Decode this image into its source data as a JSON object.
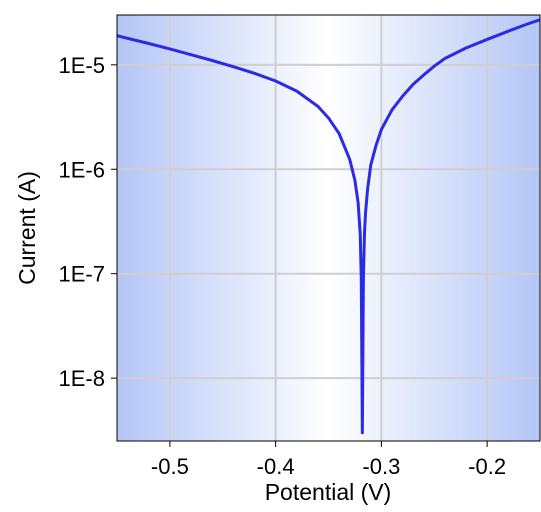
{
  "chart_data": {
    "type": "line",
    "title": "",
    "xlabel": "Potential (V)",
    "ylabel": "Current (A)",
    "xlim": [
      -0.55,
      -0.15
    ],
    "ylim": [
      2.5e-09,
      3e-05
    ],
    "y_scale": "log",
    "grid": true,
    "legend": "none",
    "x_ticks": [
      -0.5,
      -0.4,
      -0.3,
      -0.2
    ],
    "x_tick_labels": [
      "-0.5",
      "-0.4",
      "-0.3",
      "-0.2"
    ],
    "y_ticks": [
      1e-08,
      1e-07,
      1e-06,
      1e-05
    ],
    "y_tick_labels": [
      "1E-8",
      "1E-7",
      "1E-6",
      "1E-5"
    ],
    "colors": {
      "line": "#2b2be6",
      "background_edge": "#b4c6f6",
      "background_center": "#ffffff",
      "grid": "#cfcfcf"
    },
    "series": [
      {
        "x": [
          -0.55,
          -0.52,
          -0.5,
          -0.48,
          -0.46,
          -0.44,
          -0.42,
          -0.4,
          -0.38,
          -0.36,
          -0.35,
          -0.34,
          -0.33,
          -0.325,
          -0.322,
          -0.32,
          -0.319,
          -0.318,
          -0.317,
          -0.316,
          -0.315,
          -0.313,
          -0.31,
          -0.305,
          -0.3,
          -0.29,
          -0.28,
          -0.27,
          -0.26,
          -0.25,
          -0.24,
          -0.22,
          -0.2,
          -0.18,
          -0.16,
          -0.15
        ],
        "y": [
          1.9e-05,
          1.6e-05,
          1.42e-05,
          1.25e-05,
          1.1e-05,
          9.6e-06,
          8.3e-06,
          7e-06,
          5.6e-06,
          4e-06,
          3.1e-06,
          2.2e-06,
          1.25e-06,
          7.8e-07,
          4.8e-07,
          2.4e-07,
          9e-08,
          3e-09,
          9e-08,
          2.4e-07,
          3.8e-07,
          6.5e-07,
          1.1e-06,
          1.7e-06,
          2.4e-06,
          3.7e-06,
          5e-06,
          6.5e-06,
          8e-06,
          9.7e-06,
          1.15e-05,
          1.45e-05,
          1.75e-05,
          2.1e-05,
          2.5e-05,
          2.7e-05
        ]
      }
    ]
  }
}
